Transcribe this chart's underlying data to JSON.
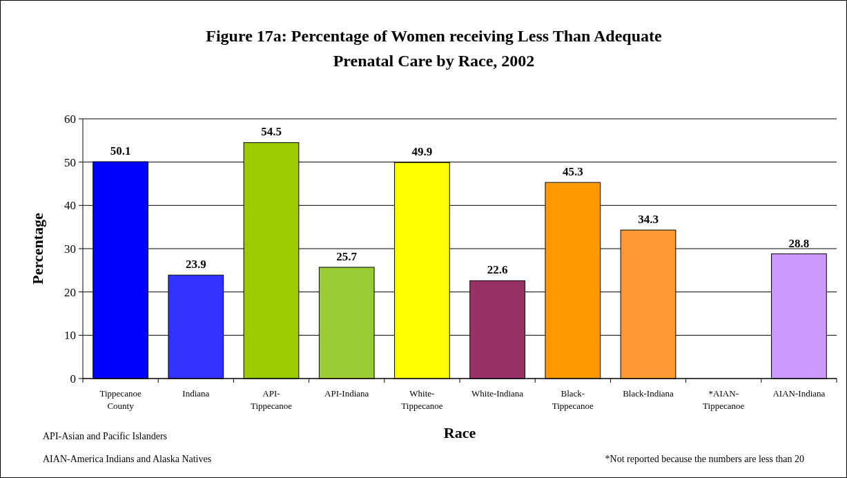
{
  "chart_data": {
    "type": "bar",
    "title": "Figure 17a: Percentage of Women receiving Less Than Adequate Prenatal Care by Race, 2002",
    "xlabel": "Race",
    "ylabel": "Percentage",
    "categories": [
      "Tippecanoe County",
      "Indiana",
      "API-Tippecanoe",
      "API-Indiana",
      "White-Tippecanoe",
      "White-Indiana",
      "Black-Tippecanoe",
      "Black-Indiana",
      "*AIAN-Tippecanoe",
      "AIAN-Indiana"
    ],
    "values": [
      50.1,
      23.9,
      54.5,
      25.7,
      49.9,
      22.6,
      45.3,
      34.3,
      null,
      28.8
    ],
    "colors": [
      "#0000ff",
      "#3333ff",
      "#99cc00",
      "#99cc33",
      "#ffff00",
      "#993366",
      "#ff9900",
      "#ff9933",
      null,
      "#cc99ff"
    ],
    "data_labels": true,
    "ylim": [
      0,
      60
    ],
    "yticks": [
      0,
      10,
      20,
      30,
      40,
      50,
      60
    ],
    "grid": "y",
    "annotations": [
      "API-Asian and Pacific Islanders",
      "AIAN-America Indians and Alaska Natives",
      "*Not reported because the numbers are less than 20"
    ]
  }
}
